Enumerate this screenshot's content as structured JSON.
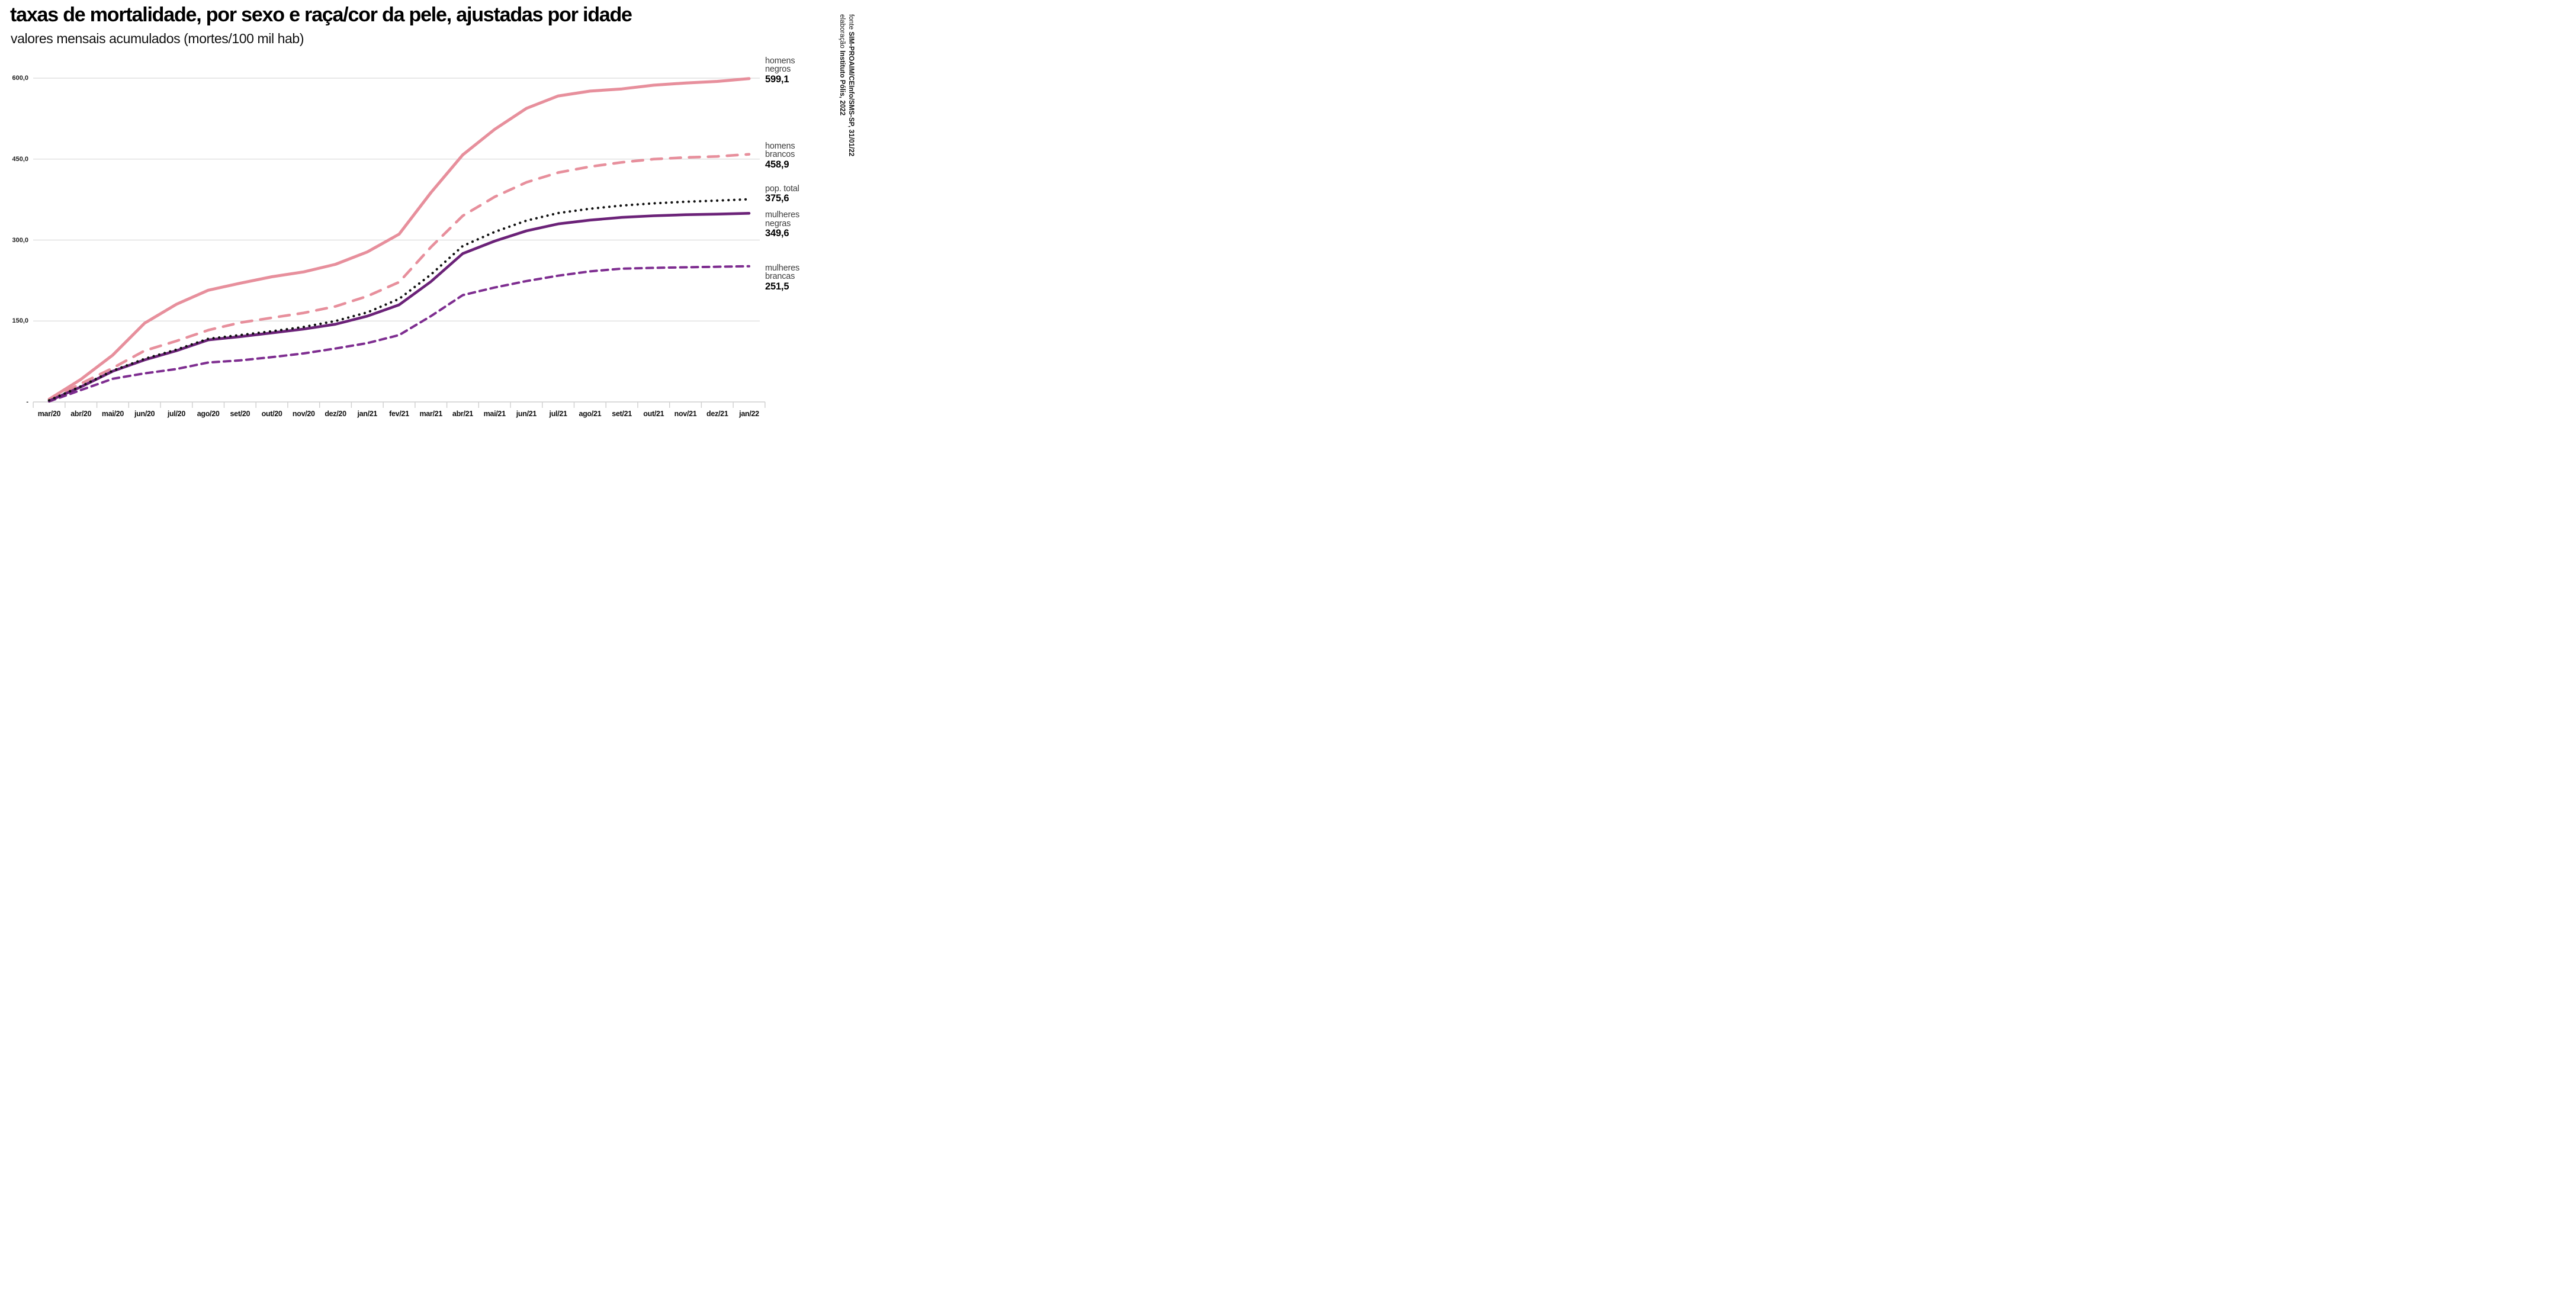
{
  "header": {
    "title": "taxas de mortalidade, por sexo e raça/cor da pele, ajustadas por idade",
    "subtitle": "valores mensais acumulados (mortes/100 mil hab)"
  },
  "source": {
    "line1_prefix": "fonte ",
    "line1_bold": "SIM-PROAIM/CEInfo/SMS-SP, 31/01/22",
    "line2_prefix": "elaboração ",
    "line2_bold": "Instituto Pólis, 2022"
  },
  "colors": {
    "salmon": "#E78F9C",
    "purple_solid": "#6B2278",
    "purple_dash": "#7E2D90",
    "dotted_black": "#111111",
    "gridline": "#DBDBDB",
    "axis": "#CFCFCF"
  },
  "legend": [
    {
      "key": "homens_negros",
      "label_lines": [
        "homens",
        "negros"
      ],
      "value_label": "599,1"
    },
    {
      "key": "homens_brancos",
      "label_lines": [
        "homens",
        "brancos"
      ],
      "value_label": "458,9"
    },
    {
      "key": "pop_total",
      "label_lines": [
        "pop. total"
      ],
      "value_label": "375,6"
    },
    {
      "key": "mulheres_negras",
      "label_lines": [
        "mulheres",
        "negras"
      ],
      "value_label": "349,6"
    },
    {
      "key": "mulheres_brancas",
      "label_lines": [
        "mulheres",
        "brancas"
      ],
      "value_label": "251,5"
    }
  ],
  "chart_data": {
    "type": "line",
    "title": "taxas de mortalidade, por sexo e raça/cor da pele, ajustadas por idade",
    "subtitle": "valores mensais acumulados (mortes/100 mil hab)",
    "xlabel": "",
    "ylabel": "mortes/100 mil hab",
    "ylim": [
      0,
      620
    ],
    "grid": true,
    "legend_position": "right",
    "categories": [
      "mar/20",
      "abr/20",
      "mai/20",
      "jun/20",
      "jul/20",
      "ago/20",
      "set/20",
      "out/20",
      "nov/20",
      "dez/20",
      "jan/21",
      "fev/21",
      "mar/21",
      "abr/21",
      "mai/21",
      "jun/21",
      "jul/21",
      "ago/21",
      "set/21",
      "out/21",
      "nov/21",
      "dez/21",
      "jan/22"
    ],
    "y_ticks": [
      {
        "value": 0,
        "label": "-"
      },
      {
        "value": 150,
        "label": "150,0"
      },
      {
        "value": 300,
        "label": "300,0"
      },
      {
        "value": 450,
        "label": "450,0"
      },
      {
        "value": 600,
        "label": "600,0"
      }
    ],
    "series": [
      {
        "key": "homens_negros",
        "name": "homens negros",
        "style": "solid",
        "color": "#E78F9C",
        "final_value": 599.1,
        "values": [
          5,
          42,
          87,
          146,
          181,
          207,
          220,
          232,
          241,
          255,
          278,
          311,
          388,
          458,
          505,
          544,
          567,
          576,
          580,
          587,
          591,
          594,
          599.1
        ]
      },
      {
        "key": "homens_brancos",
        "name": "homens brancos",
        "style": "dashed-long",
        "color": "#E78F9C",
        "final_value": 458.9,
        "values": [
          4,
          34,
          63,
          95,
          113,
          133,
          147,
          156,
          165,
          177,
          196,
          222,
          287,
          345,
          380,
          407,
          425,
          436,
          444,
          450,
          453,
          455,
          458.9
        ]
      },
      {
        "key": "mulheres_brancas",
        "name": "mulheres brancas",
        "style": "dashed-short",
        "color": "#7E2D90",
        "final_value": 251.5,
        "values": [
          1,
          22,
          43,
          53,
          61,
          73,
          77,
          83,
          90,
          99,
          109,
          124,
          159,
          198,
          212,
          224,
          234,
          242,
          247,
          248.5,
          249.5,
          250.5,
          251.5
        ]
      },
      {
        "key": "mulheres_negras",
        "name": "mulheres negras",
        "style": "solid",
        "color": "#6B2278",
        "final_value": 349.6,
        "values": [
          2,
          28,
          57,
          78,
          95,
          115,
          121,
          128,
          135,
          144,
          159,
          180,
          223,
          275,
          298,
          317,
          330,
          337,
          342,
          345,
          347,
          348,
          349.6
        ]
      },
      {
        "key": "pop_total",
        "name": "pop. total",
        "style": "dotted",
        "color": "#111111",
        "final_value": 375.6,
        "values": [
          3,
          29,
          58,
          80,
          97,
          117,
          124,
          131,
          139,
          150,
          166,
          191,
          236,
          289,
          315,
          336,
          350,
          358,
          364,
          368,
          371,
          373,
          375.6
        ]
      }
    ]
  }
}
